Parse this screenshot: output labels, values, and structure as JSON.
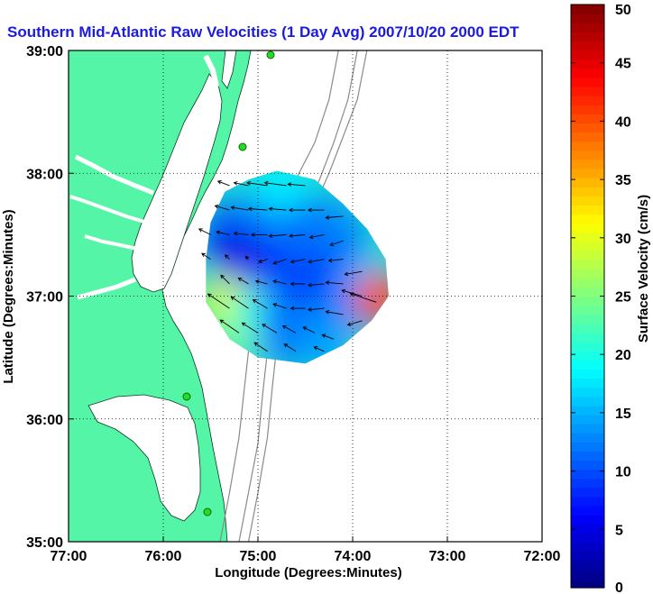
{
  "chart_data": {
    "type": "heatmap",
    "title": "Southern Mid-Atlantic Raw Velocities (1 Day Avg) 2007/10/20 2000 EDT",
    "xlabel": "Longitude (Degrees:Minutes)",
    "ylabel": "Latitude (Degrees:Minutes)",
    "x_ticks": [
      {
        "value": -77,
        "label": "77:00"
      },
      {
        "value": -76,
        "label": "76:00"
      },
      {
        "value": -75,
        "label": "75:00"
      },
      {
        "value": -74,
        "label": "74:00"
      },
      {
        "value": -73,
        "label": "73:00"
      },
      {
        "value": -72,
        "label": "72:00"
      }
    ],
    "y_ticks": [
      {
        "value": 35,
        "label": "35:00"
      },
      {
        "value": 36,
        "label": "36:00"
      },
      {
        "value": 37,
        "label": "37:00"
      },
      {
        "value": 38,
        "label": "38:00"
      },
      {
        "value": 39,
        "label": "39:00"
      }
    ],
    "xlim": [
      -77,
      -72
    ],
    "ylim": [
      35,
      39
    ],
    "grid": true,
    "grid_style": "dotted",
    "colorbar": {
      "label": "Surface Velocity (cm/s)",
      "range": [
        0,
        50
      ],
      "ticks": [
        0,
        5,
        10,
        15,
        20,
        25,
        30,
        35,
        40,
        45,
        50
      ],
      "colormap": "jet"
    },
    "colors": {
      "land": "#55f5a8",
      "ocean": "#ffffff",
      "title": "#1b1be0",
      "bathymetry": "#8a8a8a",
      "vectors": "#000000",
      "station": "#22dd22"
    },
    "velocity_field": [
      {
        "lon": -74.85,
        "lat": 37.72,
        "speed": 13
      },
      {
        "lon": -74.45,
        "lat": 37.62,
        "speed": 11
      },
      {
        "lon": -74.15,
        "lat": 37.55,
        "speed": 13
      },
      {
        "lon": -75.15,
        "lat": 37.25,
        "speed": 3
      },
      {
        "lon": -74.95,
        "lat": 37.3,
        "speed": 8
      },
      {
        "lon": -74.5,
        "lat": 37.3,
        "speed": 11
      },
      {
        "lon": -74.1,
        "lat": 37.25,
        "speed": 11
      },
      {
        "lon": -73.85,
        "lat": 37.1,
        "speed": 16
      },
      {
        "lon": -74.8,
        "lat": 37.0,
        "speed": 6
      },
      {
        "lon": -74.4,
        "lat": 37.05,
        "speed": 9
      },
      {
        "lon": -74.0,
        "lat": 36.95,
        "speed": 13
      },
      {
        "lon": -73.7,
        "lat": 36.98,
        "speed": 40
      },
      {
        "lon": -75.35,
        "lat": 36.95,
        "speed": 30
      },
      {
        "lon": -75.2,
        "lat": 36.75,
        "speed": 27
      },
      {
        "lon": -75.0,
        "lat": 36.85,
        "speed": 20
      },
      {
        "lon": -74.7,
        "lat": 36.8,
        "speed": 11
      },
      {
        "lon": -74.35,
        "lat": 36.8,
        "speed": 12
      },
      {
        "lon": -75.3,
        "lat": 37.55,
        "speed": 10
      },
      {
        "lon": -75.05,
        "lat": 37.6,
        "speed": 12
      },
      {
        "lon": -74.75,
        "lat": 37.9,
        "speed": 18
      },
      {
        "lon": -74.7,
        "lat": 36.65,
        "speed": 12
      },
      {
        "lon": -74.3,
        "lat": 36.62,
        "speed": 14
      },
      {
        "lon": -75.25,
        "lat": 37.35,
        "speed": 5
      }
    ],
    "vectors": [
      {
        "lon": -75.3,
        "lat": 37.9,
        "u": -8,
        "v": 3
      },
      {
        "lon": -75.1,
        "lat": 37.9,
        "u": -10,
        "v": 2
      },
      {
        "lon": -74.9,
        "lat": 37.9,
        "u": -14,
        "v": 2
      },
      {
        "lon": -74.7,
        "lat": 37.9,
        "u": -15,
        "v": 2
      },
      {
        "lon": -74.5,
        "lat": 37.9,
        "u": -12,
        "v": 1
      },
      {
        "lon": -75.3,
        "lat": 37.7,
        "u": -10,
        "v": 3
      },
      {
        "lon": -75.1,
        "lat": 37.7,
        "u": -12,
        "v": 2
      },
      {
        "lon": -74.9,
        "lat": 37.7,
        "u": -13,
        "v": 1
      },
      {
        "lon": -74.7,
        "lat": 37.7,
        "u": -12,
        "v": 1
      },
      {
        "lon": -74.5,
        "lat": 37.7,
        "u": -11,
        "v": 0
      },
      {
        "lon": -74.3,
        "lat": 37.7,
        "u": -11,
        "v": 0
      },
      {
        "lon": -74.1,
        "lat": 37.65,
        "u": -12,
        "v": -1
      },
      {
        "lon": -75.5,
        "lat": 37.5,
        "u": -8,
        "v": 4
      },
      {
        "lon": -75.3,
        "lat": 37.5,
        "u": -9,
        "v": 2
      },
      {
        "lon": -75.1,
        "lat": 37.5,
        "u": -10,
        "v": 1
      },
      {
        "lon": -74.9,
        "lat": 37.5,
        "u": -11,
        "v": 0
      },
      {
        "lon": -74.7,
        "lat": 37.5,
        "u": -12,
        "v": -1
      },
      {
        "lon": -74.5,
        "lat": 37.5,
        "u": -11,
        "v": -1
      },
      {
        "lon": -74.3,
        "lat": 37.5,
        "u": -10,
        "v": -2
      },
      {
        "lon": -74.1,
        "lat": 37.45,
        "u": -9,
        "v": -3
      },
      {
        "lon": -75.5,
        "lat": 37.3,
        "u": -6,
        "v": 4
      },
      {
        "lon": -75.3,
        "lat": 37.3,
        "u": -3,
        "v": 3
      },
      {
        "lon": -75.1,
        "lat": 37.3,
        "u": -2,
        "v": 2
      },
      {
        "lon": -74.9,
        "lat": 37.3,
        "u": -6,
        "v": -2
      },
      {
        "lon": -74.7,
        "lat": 37.3,
        "u": -9,
        "v": -3
      },
      {
        "lon": -74.5,
        "lat": 37.3,
        "u": -10,
        "v": -2
      },
      {
        "lon": -74.3,
        "lat": 37.3,
        "u": -11,
        "v": -2
      },
      {
        "lon": -74.1,
        "lat": 37.3,
        "u": -10,
        "v": -1
      },
      {
        "lon": -73.9,
        "lat": 37.2,
        "u": -12,
        "v": -2
      },
      {
        "lon": -75.3,
        "lat": 37.1,
        "u": -6,
        "v": 6
      },
      {
        "lon": -75.1,
        "lat": 37.1,
        "u": -7,
        "v": 4
      },
      {
        "lon": -74.9,
        "lat": 37.1,
        "u": -8,
        "v": 2
      },
      {
        "lon": -74.7,
        "lat": 37.1,
        "u": -9,
        "v": 2
      },
      {
        "lon": -74.5,
        "lat": 37.1,
        "u": -10,
        "v": 0
      },
      {
        "lon": -74.3,
        "lat": 37.1,
        "u": -11,
        "v": -1
      },
      {
        "lon": -74.1,
        "lat": 37.1,
        "u": -12,
        "v": 1
      },
      {
        "lon": -73.9,
        "lat": 37.0,
        "u": -14,
        "v": 4
      },
      {
        "lon": -73.75,
        "lat": 36.95,
        "u": -18,
        "v": 6
      },
      {
        "lon": -75.3,
        "lat": 36.9,
        "u": -15,
        "v": 10
      },
      {
        "lon": -75.1,
        "lat": 36.9,
        "u": -12,
        "v": 8
      },
      {
        "lon": -74.9,
        "lat": 36.9,
        "u": -10,
        "v": 6
      },
      {
        "lon": -74.7,
        "lat": 36.9,
        "u": -9,
        "v": 3
      },
      {
        "lon": -74.5,
        "lat": 36.9,
        "u": -10,
        "v": 0
      },
      {
        "lon": -74.3,
        "lat": 36.9,
        "u": -11,
        "v": -1
      },
      {
        "lon": -74.1,
        "lat": 36.85,
        "u": -12,
        "v": 2
      },
      {
        "lon": -73.9,
        "lat": 36.8,
        "u": -10,
        "v": -3
      },
      {
        "lon": -75.2,
        "lat": 36.7,
        "u": -13,
        "v": 9
      },
      {
        "lon": -75.0,
        "lat": 36.7,
        "u": -11,
        "v": 7
      },
      {
        "lon": -74.8,
        "lat": 36.7,
        "u": -10,
        "v": 6
      },
      {
        "lon": -74.6,
        "lat": 36.7,
        "u": -9,
        "v": 5
      },
      {
        "lon": -74.4,
        "lat": 36.7,
        "u": -8,
        "v": 4
      },
      {
        "lon": -74.2,
        "lat": 36.65,
        "u": -8,
        "v": 3
      },
      {
        "lon": -74.9,
        "lat": 36.55,
        "u": -9,
        "v": 6
      },
      {
        "lon": -74.6,
        "lat": 36.55,
        "u": -8,
        "v": 5
      },
      {
        "lon": -74.3,
        "lat": 36.55,
        "u": -7,
        "v": 3
      }
    ]
  }
}
